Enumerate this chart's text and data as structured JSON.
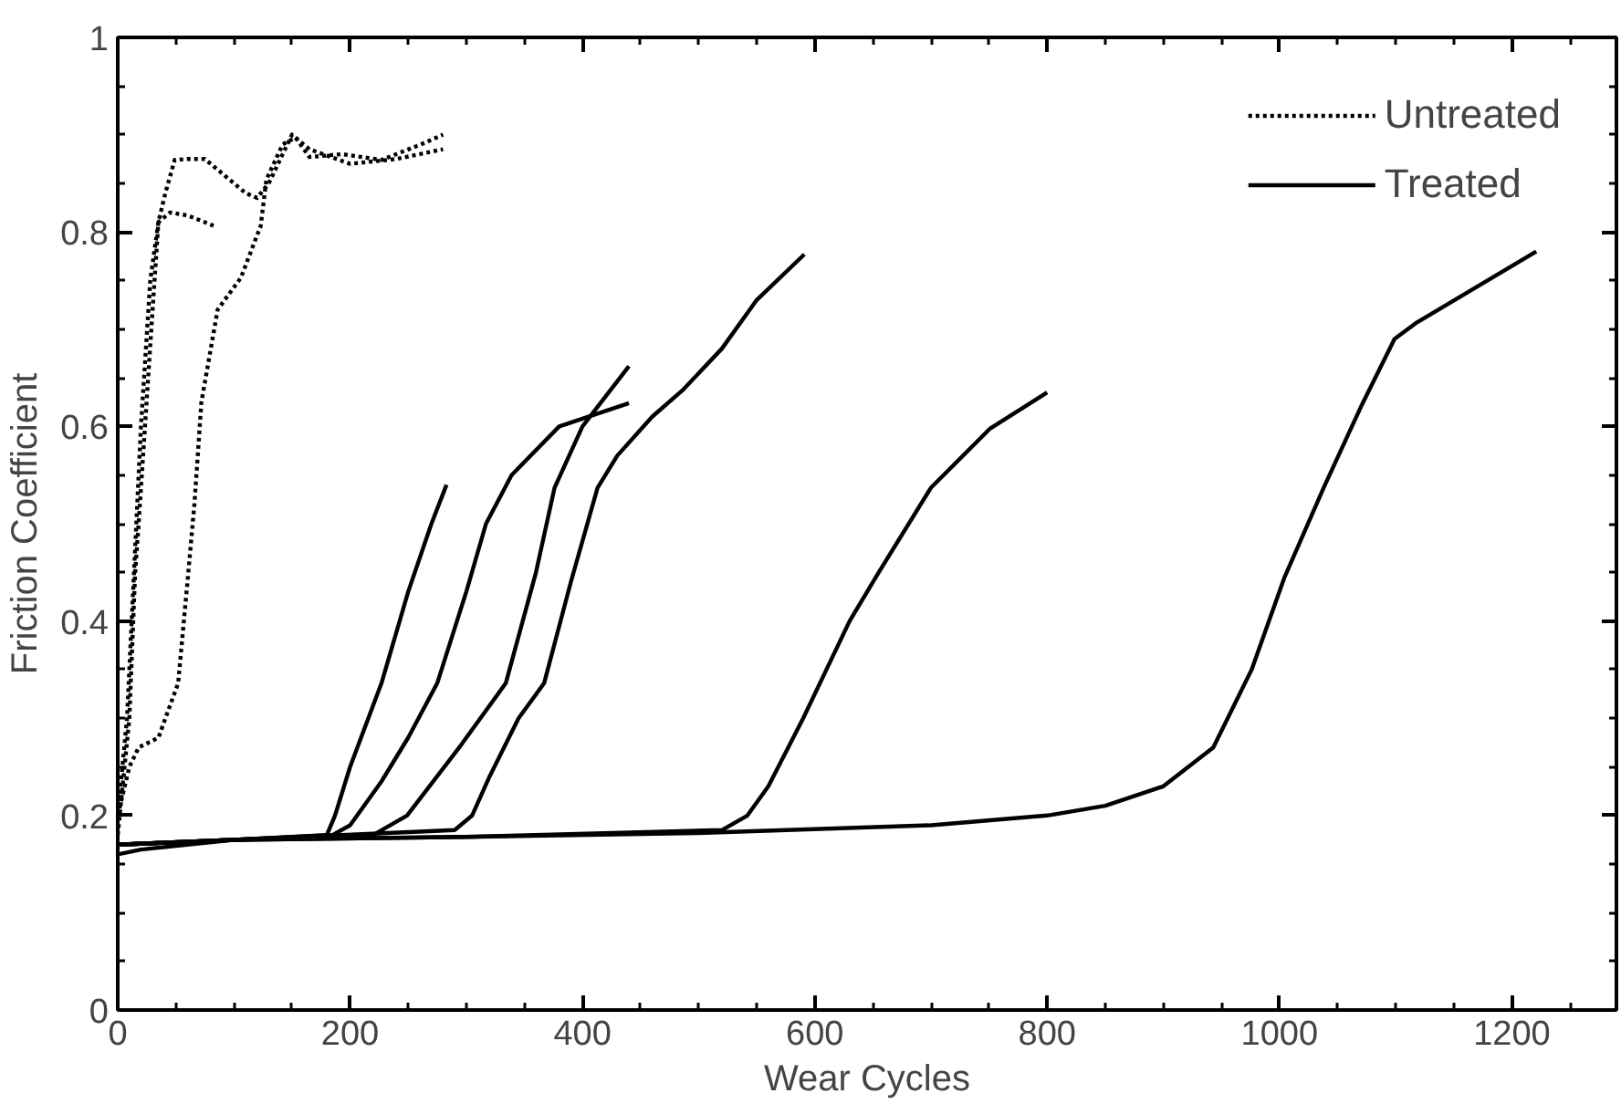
{
  "chart_data": {
    "type": "line",
    "xlabel": "Wear Cycles",
    "ylabel": "Friction Coefficient",
    "xlim": [
      0,
      1290
    ],
    "ylim": [
      0,
      1
    ],
    "xticks": [
      0,
      {
        "value": 50,
        "label": null
      },
      {
        "value": 100,
        "label": null
      },
      {
        "value": 150,
        "label": null
      },
      200,
      {
        "value": 250,
        "label": null
      },
      {
        "value": 300,
        "label": null
      },
      {
        "value": 350,
        "label": null
      },
      400,
      {
        "value": 450,
        "label": null
      },
      {
        "value": 500,
        "label": null
      },
      {
        "value": 550,
        "label": null
      },
      600,
      {
        "value": 650,
        "label": null
      },
      {
        "value": 700,
        "label": null
      },
      {
        "value": 750,
        "label": null
      },
      800,
      {
        "value": 850,
        "label": null
      },
      {
        "value": 900,
        "label": null
      },
      {
        "value": 950,
        "label": null
      },
      1000,
      {
        "value": 1050,
        "label": null
      },
      {
        "value": 1100,
        "label": null
      },
      {
        "value": 1150,
        "label": null
      },
      1200,
      {
        "value": 1250,
        "label": null
      }
    ],
    "yticks": [
      0,
      {
        "value": 0.05,
        "label": null
      },
      {
        "value": 0.1,
        "label": null
      },
      {
        "value": 0.15,
        "label": null
      },
      0.2,
      {
        "value": 0.25,
        "label": null
      },
      {
        "value": 0.3,
        "label": null
      },
      {
        "value": 0.35,
        "label": null
      },
      0.4,
      {
        "value": 0.45,
        "label": null
      },
      {
        "value": 0.5,
        "label": null
      },
      {
        "value": 0.55,
        "label": null
      },
      0.6,
      {
        "value": 0.65,
        "label": null
      },
      {
        "value": 0.7,
        "label": null
      },
      {
        "value": 0.75,
        "label": null
      },
      0.8,
      {
        "value": 0.85,
        "label": null
      },
      {
        "value": 0.9,
        "label": null
      },
      {
        "value": 0.95,
        "label": null
      },
      1
    ],
    "grid": false,
    "legend": "top right",
    "marker": "none",
    "series": [
      {
        "name": "Untreated",
        "color": "#000000",
        "line_style": "dotted",
        "x": [
          0,
          8,
          14,
          20,
          28,
          35,
          41,
          49,
          60,
          75,
          90,
          110,
          120,
          130,
          142,
          150,
          165,
          200,
          240,
          280
        ],
        "values": [
          0.2,
          0.3,
          0.45,
          0.6,
          0.75,
          0.81,
          0.84,
          0.874,
          0.875,
          0.875,
          0.86,
          0.84,
          0.835,
          0.85,
          0.88,
          0.9,
          0.885,
          0.87,
          0.875,
          0.885
        ]
      },
      {
        "color": "#000000",
        "line_style": "dotted",
        "x": [
          0,
          5,
          10,
          15,
          18,
          24,
          30,
          35,
          45,
          60,
          75,
          85
        ],
        "values": [
          0.18,
          0.24,
          0.3,
          0.45,
          0.5,
          0.61,
          0.72,
          0.81,
          0.82,
          0.817,
          0.81,
          0.805
        ]
      },
      {
        "color": "#000000",
        "line_style": "dotted",
        "x": [
          0,
          10,
          18,
          35,
          52,
          60,
          66,
          72,
          86,
          106,
          123,
          128,
          142,
          153,
          165,
          193,
          227,
          261,
          280
        ],
        "values": [
          0.2,
          0.25,
          0.27,
          0.28,
          0.336,
          0.44,
          0.52,
          0.625,
          0.72,
          0.753,
          0.806,
          0.854,
          0.89,
          0.897,
          0.877,
          0.88,
          0.874,
          0.89,
          0.9
        ]
      },
      {
        "name": "Treated",
        "color": "#000000",
        "line_style": "solid",
        "x": [
          0,
          20,
          100,
          300,
          500,
          700,
          800,
          850,
          900,
          943,
          976,
          1004,
          1038,
          1070,
          1099,
          1117,
          1221
        ],
        "values": [
          0.16,
          0.165,
          0.175,
          0.178,
          0.182,
          0.19,
          0.2,
          0.21,
          0.23,
          0.27,
          0.35,
          0.444,
          0.537,
          0.62,
          0.69,
          0.706,
          0.78
        ]
      },
      {
        "color": "#000000",
        "line_style": "solid",
        "x": [
          0,
          100,
          180,
          187,
          200,
          227,
          250,
          270,
          283
        ],
        "values": [
          0.17,
          0.175,
          0.18,
          0.2,
          0.25,
          0.336,
          0.43,
          0.5,
          0.54
        ]
      },
      {
        "color": "#000000",
        "line_style": "solid",
        "x": [
          0,
          100,
          185,
          200,
          227,
          250,
          275,
          300,
          317,
          339,
          380,
          440
        ],
        "values": [
          0.17,
          0.175,
          0.18,
          0.19,
          0.235,
          0.28,
          0.336,
          0.43,
          0.5,
          0.55,
          0.6,
          0.624
        ]
      },
      {
        "color": "#000000",
        "line_style": "solid",
        "x": [
          0,
          100,
          220,
          249,
          294,
          334,
          360,
          376,
          400,
          440
        ],
        "values": [
          0.17,
          0.175,
          0.18,
          0.2,
          0.27,
          0.336,
          0.45,
          0.537,
          0.6,
          0.662
        ]
      },
      {
        "color": "#000000",
        "line_style": "solid",
        "x": [
          0,
          100,
          290,
          305,
          320,
          345,
          367,
          390,
          413,
          430,
          460,
          486,
          520,
          550,
          591
        ],
        "values": [
          0.17,
          0.175,
          0.185,
          0.2,
          0.24,
          0.3,
          0.336,
          0.44,
          0.537,
          0.57,
          0.61,
          0.637,
          0.68,
          0.73,
          0.777
        ]
      },
      {
        "color": "#000000",
        "line_style": "solid",
        "x": [
          0,
          100,
          300,
          520,
          542,
          560,
          590,
          630,
          655,
          700,
          751,
          800
        ],
        "values": [
          0.17,
          0.175,
          0.178,
          0.185,
          0.2,
          0.23,
          0.3,
          0.4,
          0.45,
          0.537,
          0.598,
          0.635
        ]
      }
    ]
  }
}
